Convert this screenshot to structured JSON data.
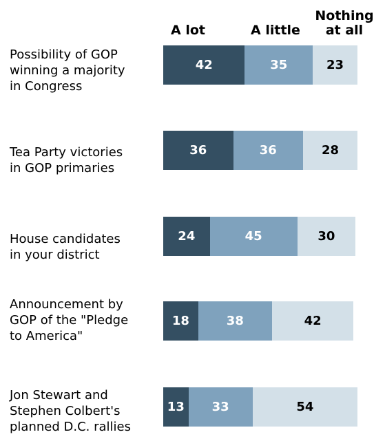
{
  "chart_data": {
    "type": "bar",
    "orientation": "horizontal",
    "stacked": true,
    "series": [
      {
        "name": "A lot",
        "color": "#344f62",
        "values": [
          42,
          36,
          24,
          18,
          13
        ]
      },
      {
        "name": "A little",
        "color": "#7fa2bd",
        "values": [
          35,
          36,
          45,
          38,
          33
        ]
      },
      {
        "name": "Nothing at all",
        "color": "#d3e0e8",
        "values": [
          23,
          28,
          30,
          42,
          54
        ]
      }
    ],
    "categories": [
      "Possibility of GOP\nwinning a majority\nin Congress",
      "Tea Party victories\nin GOP primaries",
      "House candidates\nin your district",
      "Announcement by\nGOP of the \"Pledge\nto America\"",
      "Jon Stewart and\nStephen Colbert's\nplanned D.C. rallies"
    ],
    "column_headers": [
      "A lot",
      "A little",
      "Nothing\nat all"
    ]
  }
}
